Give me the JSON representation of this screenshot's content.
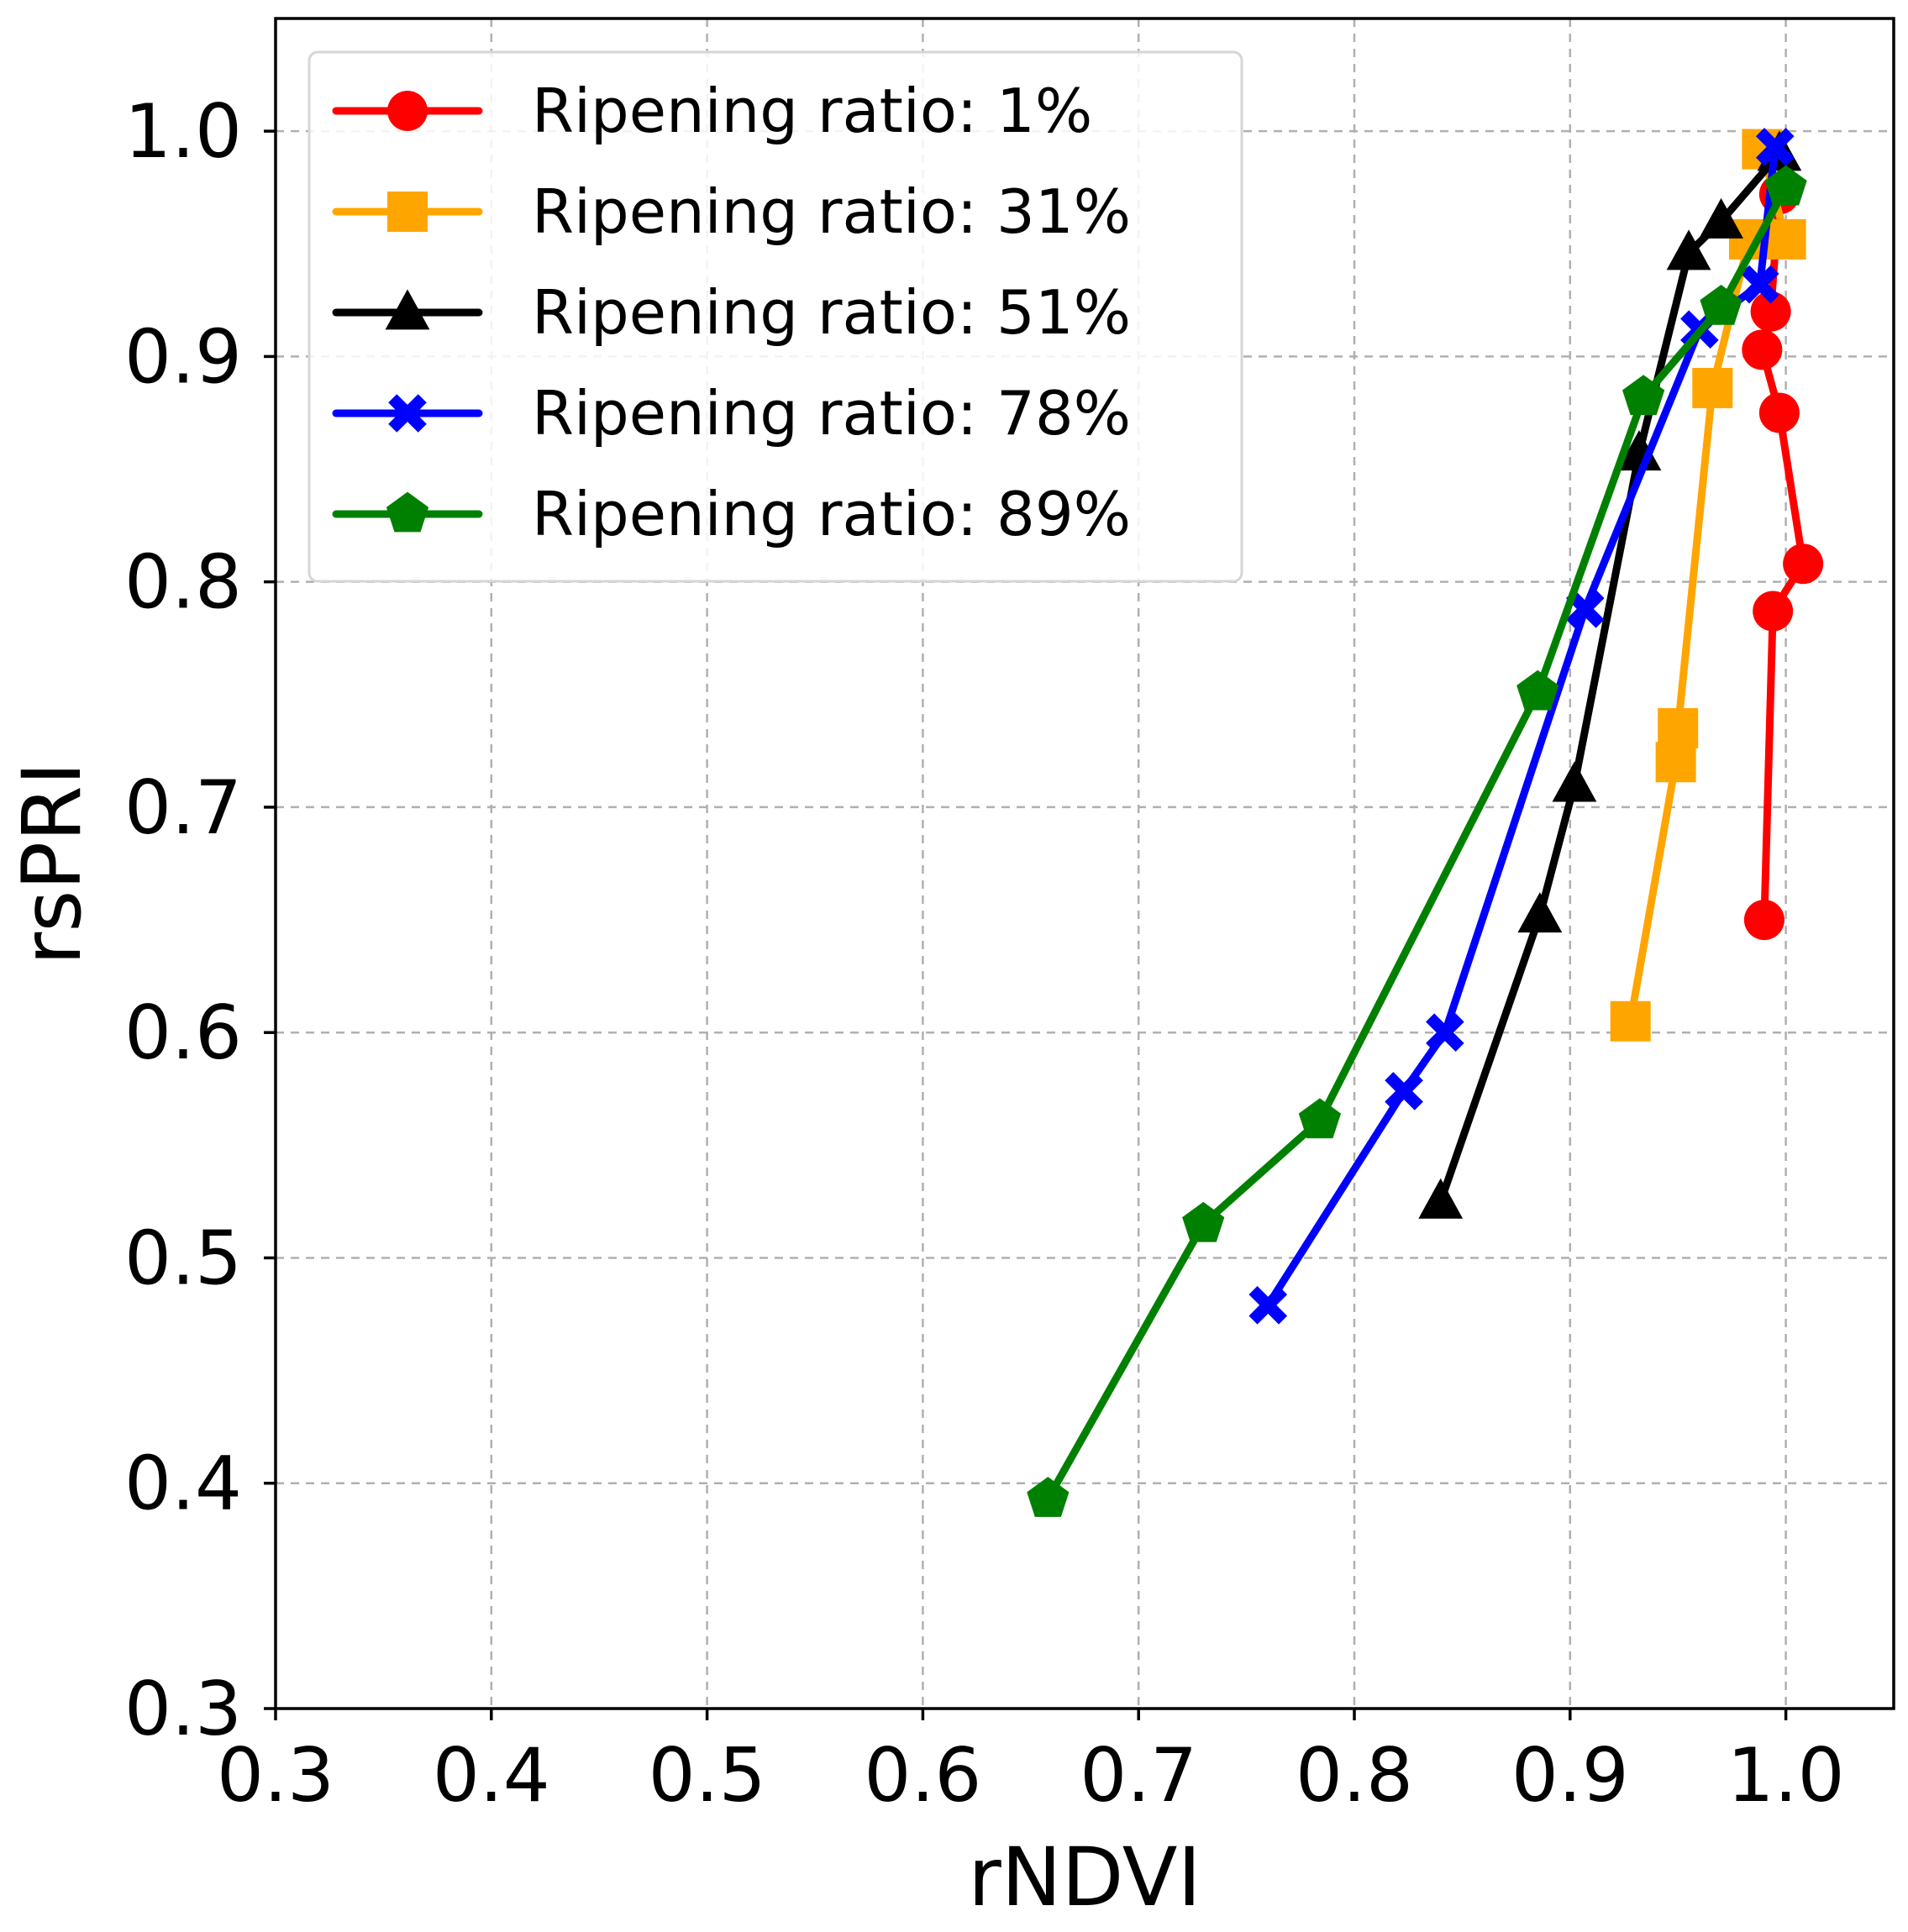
{
  "chart_data": {
    "type": "line",
    "title": "",
    "xlabel": "rNDVI",
    "ylabel": "rsPRI",
    "xlim": [
      0.3,
      1.05
    ],
    "ylim": [
      0.3,
      1.05
    ],
    "xticks": [
      0.3,
      0.4,
      0.5,
      0.6,
      0.7,
      0.8,
      0.9,
      1.0
    ],
    "yticks": [
      0.3,
      0.4,
      0.5,
      0.6,
      0.7,
      0.8,
      0.9,
      1.0
    ],
    "xtick_labels": [
      "0.3",
      "0.4",
      "0.5",
      "0.6",
      "0.7",
      "0.8",
      "0.9",
      "1.0"
    ],
    "ytick_labels": [
      "0.3",
      "0.4",
      "0.5",
      "0.6",
      "0.7",
      "0.8",
      "0.9",
      "1.0"
    ],
    "grid": true,
    "legend_position": "top-left",
    "series": [
      {
        "name": "Ripening ratio: 1%",
        "color": "#ff0000",
        "marker": "circle",
        "points": [
          [
            0.99,
            0.65
          ],
          [
            0.994,
            0.787
          ],
          [
            1.008,
            0.808
          ],
          [
            0.997,
            0.875
          ],
          [
            0.989,
            0.903
          ],
          [
            0.993,
            0.92
          ],
          [
            0.997,
            0.972
          ]
        ]
      },
      {
        "name": "Ripening ratio: 31%",
        "color": "#ffa500",
        "marker": "square",
        "points": [
          [
            0.928,
            0.605
          ],
          [
            0.949,
            0.72
          ],
          [
            0.95,
            0.735
          ],
          [
            0.966,
            0.886
          ],
          [
            0.983,
            0.952
          ],
          [
            1.0,
            0.952
          ],
          [
            0.989,
            0.992
          ]
        ]
      },
      {
        "name": "Ripening ratio: 51%",
        "color": "#000000",
        "marker": "triangle",
        "points": [
          [
            0.84,
            0.525
          ],
          [
            0.886,
            0.652
          ],
          [
            0.902,
            0.71
          ],
          [
            0.932,
            0.857
          ],
          [
            0.955,
            0.946
          ],
          [
            0.97,
            0.96
          ],
          [
            0.997,
            0.99
          ]
        ]
      },
      {
        "name": "Ripening ratio: 78%",
        "color": "#0000ff",
        "marker": "x",
        "points": [
          [
            0.76,
            0.479
          ],
          [
            0.823,
            0.574
          ],
          [
            0.842,
            0.6
          ],
          [
            0.907,
            0.788
          ],
          [
            0.96,
            0.912
          ],
          [
            0.988,
            0.932
          ],
          [
            0.995,
            0.993
          ]
        ]
      },
      {
        "name": "Ripening ratio: 89%",
        "color": "#008000",
        "marker": "pentagon",
        "points": [
          [
            0.658,
            0.393
          ],
          [
            0.73,
            0.515
          ],
          [
            0.784,
            0.561
          ],
          [
            0.885,
            0.751
          ],
          [
            0.934,
            0.882
          ],
          [
            0.97,
            0.922
          ],
          [
            1.0,
            0.975
          ]
        ]
      }
    ]
  }
}
